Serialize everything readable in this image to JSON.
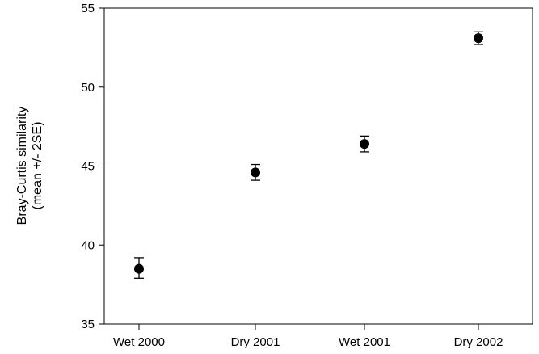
{
  "chart_data": {
    "type": "scatter",
    "title": "",
    "xlabel": "",
    "ylabel_lines": [
      "Bray-Curtis similarity",
      "(mean +/- 2SE)"
    ],
    "categories": [
      "Wet 2000",
      "Dry 2001",
      "Wet 2001",
      "Dry 2002"
    ],
    "values": [
      38.5,
      44.6,
      46.4,
      53.1
    ],
    "error_low": [
      37.9,
      44.1,
      45.9,
      52.7
    ],
    "error_high": [
      39.2,
      45.1,
      46.9,
      53.5
    ],
    "error_label": "+/- 2SE",
    "ylim": [
      35,
      55
    ],
    "yticks": [
      35,
      40,
      45,
      50,
      55
    ],
    "ytick_labels": [
      "35",
      "40",
      "45",
      "50",
      "55"
    ],
    "grid": false,
    "legend": "none",
    "colors": {
      "marker": "#000000",
      "axis": "#000000"
    }
  }
}
